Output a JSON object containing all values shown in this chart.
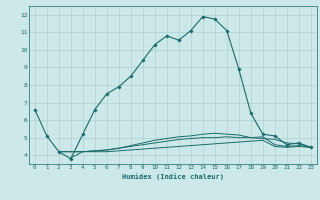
{
  "xlabel": "Humidex (Indice chaleur)",
  "background_color": "#cde8e8",
  "grid_color": "#a8cccc",
  "line_color": "#1a6b6b",
  "xlim": [
    -0.5,
    23.5
  ],
  "ylim": [
    3.5,
    12.5
  ],
  "xticks": [
    0,
    1,
    2,
    3,
    4,
    5,
    6,
    7,
    8,
    9,
    10,
    11,
    12,
    13,
    14,
    15,
    16,
    17,
    18,
    19,
    20,
    21,
    22,
    23
  ],
  "yticks": [
    4,
    5,
    6,
    7,
    8,
    9,
    10,
    11,
    12
  ],
  "series": [
    {
      "x": [
        0,
        1,
        2,
        3,
        4,
        5,
        6,
        7,
        8,
        9,
        10,
        11,
        12,
        13,
        14,
        15,
        16,
        17,
        18,
        19,
        20,
        21,
        22,
        23
      ],
      "y": [
        6.6,
        5.1,
        4.2,
        3.8,
        5.2,
        6.6,
        7.5,
        7.9,
        8.5,
        9.4,
        10.3,
        10.8,
        10.55,
        11.1,
        11.9,
        11.75,
        11.1,
        8.9,
        6.4,
        5.2,
        5.1,
        4.6,
        4.7,
        4.45
      ],
      "marker": "D",
      "markersize": 1.8,
      "linewidth": 0.8
    },
    {
      "x": [
        2,
        3,
        4,
        5,
        6,
        7,
        8,
        9,
        10,
        11,
        12,
        13,
        14,
        15,
        16,
        17,
        18,
        19,
        20,
        21,
        22,
        23
      ],
      "y": [
        4.2,
        4.2,
        4.2,
        4.2,
        4.2,
        4.25,
        4.3,
        4.35,
        4.4,
        4.45,
        4.5,
        4.55,
        4.6,
        4.65,
        4.7,
        4.75,
        4.8,
        4.85,
        4.5,
        4.45,
        4.5,
        4.45
      ],
      "marker": null,
      "markersize": 0,
      "linewidth": 0.7
    },
    {
      "x": [
        2,
        3,
        4,
        5,
        6,
        7,
        8,
        9,
        10,
        11,
        12,
        13,
        14,
        15,
        16,
        17,
        18,
        19,
        20,
        21,
        22,
        23
      ],
      "y": [
        4.2,
        4.2,
        4.2,
        4.25,
        4.3,
        4.4,
        4.5,
        4.6,
        4.7,
        4.8,
        4.9,
        4.95,
        5.0,
        5.0,
        5.05,
        5.0,
        5.0,
        5.05,
        4.6,
        4.5,
        4.55,
        4.45
      ],
      "marker": null,
      "markersize": 0,
      "linewidth": 0.7
    },
    {
      "x": [
        3,
        4,
        5,
        6,
        7,
        8,
        9,
        10,
        11,
        12,
        13,
        14,
        15,
        16,
        17,
        18,
        19,
        20,
        21,
        22,
        23
      ],
      "y": [
        3.85,
        4.2,
        4.25,
        4.3,
        4.4,
        4.55,
        4.7,
        4.85,
        4.95,
        5.05,
        5.1,
        5.2,
        5.25,
        5.2,
        5.15,
        5.0,
        4.95,
        4.9,
        4.7,
        4.65,
        4.45
      ],
      "marker": null,
      "markersize": 0,
      "linewidth": 0.7
    }
  ]
}
